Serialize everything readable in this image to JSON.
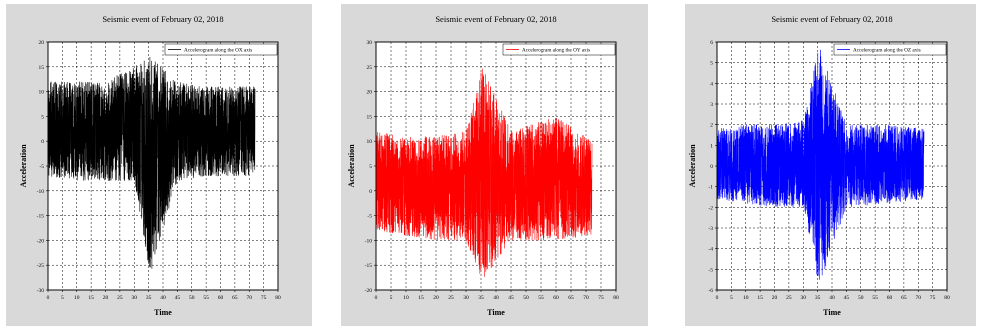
{
  "chart_data": [
    {
      "type": "line",
      "title": "Seismic event of February 02, 2018",
      "xlabel": "Time",
      "ylabel": "Acceleration",
      "xlim": [
        0,
        80
      ],
      "ylim": [
        -30,
        20
      ],
      "xticks": [
        0,
        5,
        10,
        15,
        20,
        25,
        30,
        35,
        40,
        45,
        50,
        55,
        60,
        65,
        70,
        75,
        80
      ],
      "yticks": [
        -30,
        -25,
        -20,
        -15,
        -10,
        -5,
        0,
        5,
        10,
        15,
        20
      ],
      "grid": true,
      "legend_position": "top-right",
      "color": "#000000",
      "series": [
        {
          "name": "Accelerogram along the OX axis",
          "x_range": [
            0,
            72
          ],
          "envelope": [
            {
              "x": 0,
              "min": -7,
              "max": 12
            },
            {
              "x": 10,
              "min": -8,
              "max": 12
            },
            {
              "x": 20,
              "min": -8,
              "max": 12
            },
            {
              "x": 30,
              "min": -8,
              "max": 15
            },
            {
              "x": 35.5,
              "min": -27,
              "max": 17
            },
            {
              "x": 45,
              "min": -8,
              "max": 12
            },
            {
              "x": 55,
              "min": -7,
              "max": 11
            },
            {
              "x": 72,
              "min": -7,
              "max": 11
            }
          ]
        }
      ]
    },
    {
      "type": "line",
      "title": "Seismic event of February 02, 2018",
      "xlabel": "Time",
      "ylabel": "Acceleration",
      "xlim": [
        0,
        80
      ],
      "ylim": [
        -20,
        30
      ],
      "xticks": [
        0,
        5,
        10,
        15,
        20,
        25,
        30,
        35,
        40,
        45,
        50,
        55,
        60,
        65,
        70,
        75,
        80
      ],
      "yticks": [
        -20,
        -15,
        -10,
        -5,
        0,
        5,
        10,
        15,
        20,
        25,
        30
      ],
      "grid": true,
      "legend_position": "top-right",
      "color": "#ff0000",
      "series": [
        {
          "name": "Accelerogram along the OY axis",
          "x_range": [
            0,
            72
          ],
          "envelope": [
            {
              "x": 0,
              "min": -8,
              "max": 12
            },
            {
              "x": 10,
              "min": -9,
              "max": 11
            },
            {
              "x": 20,
              "min": -10,
              "max": 11
            },
            {
              "x": 30,
              "min": -10,
              "max": 12
            },
            {
              "x": 35.5,
              "min": -18,
              "max": 25
            },
            {
              "x": 45,
              "min": -10,
              "max": 12
            },
            {
              "x": 60,
              "min": -10,
              "max": 15
            },
            {
              "x": 72,
              "min": -9,
              "max": 10
            }
          ]
        }
      ]
    },
    {
      "type": "line",
      "title": "Seismic event of February 02, 2018",
      "xlabel": "Time",
      "ylabel": "Acceleration",
      "xlim": [
        0,
        80
      ],
      "ylim": [
        -6,
        6
      ],
      "xticks": [
        0,
        5,
        10,
        15,
        20,
        25,
        30,
        35,
        40,
        45,
        50,
        55,
        60,
        65,
        70,
        75,
        80
      ],
      "yticks": [
        -6,
        -5,
        -4,
        -3,
        -2,
        -1,
        0,
        1,
        2,
        3,
        4,
        5,
        6
      ],
      "grid": true,
      "legend_position": "top-right",
      "color": "#0000ff",
      "series": [
        {
          "name": "Accelerogram along the OZ axis",
          "x_range": [
            0,
            72
          ],
          "envelope": [
            {
              "x": 0,
              "min": -1.6,
              "max": 1.8
            },
            {
              "x": 10,
              "min": -1.8,
              "max": 2
            },
            {
              "x": 20,
              "min": -2,
              "max": 2
            },
            {
              "x": 30,
              "min": -2,
              "max": 2.2
            },
            {
              "x": 35.5,
              "min": -5.8,
              "max": 5.8
            },
            {
              "x": 45,
              "min": -2,
              "max": 2
            },
            {
              "x": 60,
              "min": -1.8,
              "max": 2
            },
            {
              "x": 72,
              "min": -1.6,
              "max": 1.8
            }
          ]
        }
      ]
    }
  ]
}
